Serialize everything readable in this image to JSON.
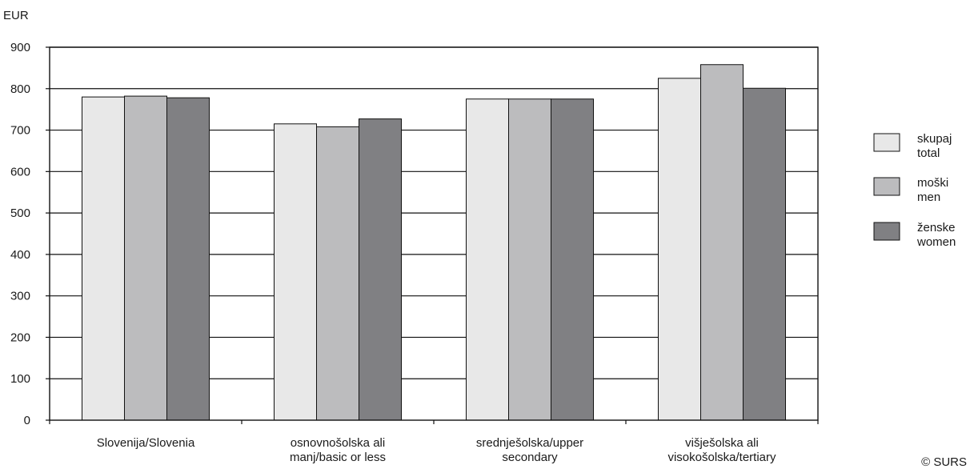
{
  "chart_data": {
    "type": "bar",
    "title": "",
    "ylabel": "EUR",
    "xlabel": "",
    "ylim": [
      0,
      900
    ],
    "yticks": [
      0,
      100,
      200,
      300,
      400,
      500,
      600,
      700,
      800,
      900
    ],
    "grid": true,
    "legend_position": "right",
    "categories": [
      [
        "Slovenija/Slovenia"
      ],
      [
        "osnovnošolska ali",
        "manj/basic or less"
      ],
      [
        "srednješolska/upper",
        "secondary"
      ],
      [
        "višješolska ali",
        "visokošolska/tertiary"
      ]
    ],
    "series": [
      {
        "name": [
          "skupaj",
          "total"
        ],
        "color": "#e8e8e8",
        "values": [
          780,
          715,
          775,
          825
        ]
      },
      {
        "name": [
          "moški",
          "men"
        ],
        "color": "#bcbcbe",
        "values": [
          782,
          708,
          775,
          858
        ]
      },
      {
        "name": [
          "ženske",
          "women"
        ],
        "color": "#808083",
        "values": [
          778,
          727,
          775,
          801
        ]
      }
    ],
    "source": "© SURS"
  }
}
